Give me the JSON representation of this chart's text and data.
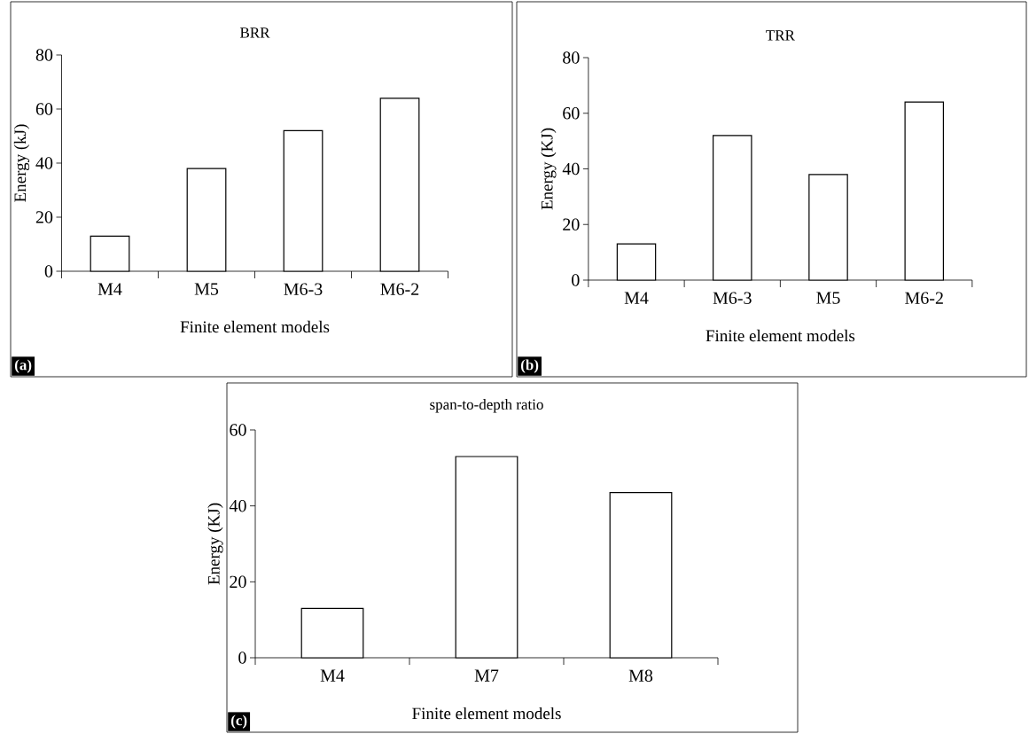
{
  "chart_data": [
    {
      "type": "bar",
      "title": "BRR",
      "xlabel": "Finite element models",
      "ylabel": "Energy (kJ)",
      "categories": [
        "M4",
        "M5",
        "M6-3",
        "M6-2"
      ],
      "values": [
        13,
        38,
        52,
        64
      ],
      "color": "#000000",
      "ylim": [
        0,
        80
      ],
      "yticks": [
        0,
        20,
        40,
        60,
        80
      ],
      "annotations": [
        "(a)"
      ]
    },
    {
      "type": "bar",
      "title": "TRR",
      "xlabel": "Finite element models",
      "ylabel": "Energy (KJ)",
      "categories": [
        "M4",
        "M6-3",
        "M5",
        "M6-2"
      ],
      "values": [
        13,
        52,
        38,
        64
      ],
      "color": "#000000",
      "ylim": [
        0,
        80
      ],
      "yticks": [
        0,
        20,
        40,
        60,
        80
      ],
      "annotations": [
        "(b)"
      ]
    },
    {
      "type": "bar",
      "title": "span-to-depth ratio",
      "xlabel": "Finite element models",
      "ylabel": "Energy (KJ)",
      "categories": [
        "M4",
        "M7",
        "M8"
      ],
      "values": [
        13,
        53,
        43.5
      ],
      "color": "#000000",
      "ylim": [
        0,
        60
      ],
      "yticks": [
        0,
        20,
        40,
        60
      ],
      "annotations": [
        "(c)"
      ]
    }
  ]
}
